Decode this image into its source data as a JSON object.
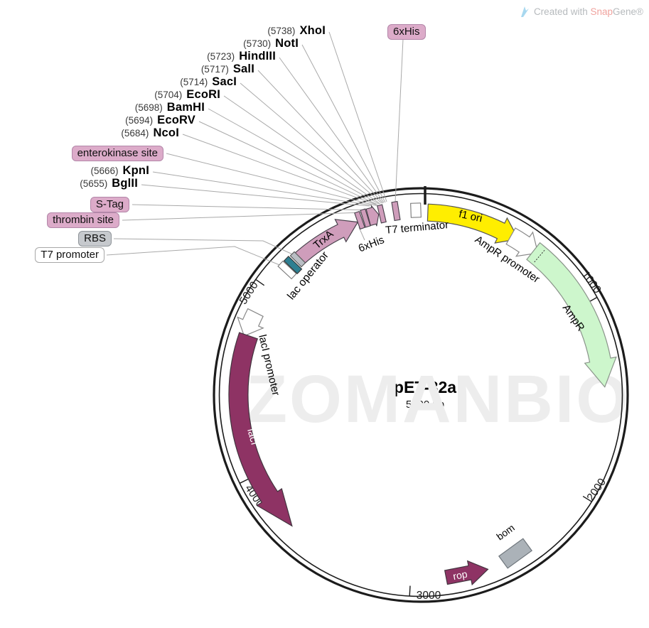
{
  "credit": {
    "prefix": "Created with ",
    "brand_a": "Snap",
    "brand_b": "Gene",
    "registered": "®",
    "logo": "snapgene-logo"
  },
  "watermark": "ZOMANBIO",
  "plasmid": {
    "name": "pET-32a",
    "size": "5900 bp"
  },
  "position_ticks": [
    "1000",
    "2000",
    "3000",
    "4000",
    "5000"
  ],
  "restriction_sites": [
    {
      "position": "(5738)",
      "enzyme": "XhoI"
    },
    {
      "position": "(5730)",
      "enzyme": "NotI"
    },
    {
      "position": "(5723)",
      "enzyme": "HindIII"
    },
    {
      "position": "(5717)",
      "enzyme": "SalI"
    },
    {
      "position": "(5714)",
      "enzyme": "SacI"
    },
    {
      "position": "(5704)",
      "enzyme": "EcoRI"
    },
    {
      "position": "(5698)",
      "enzyme": "BamHI"
    },
    {
      "position": "(5694)",
      "enzyme": "EcoRV"
    },
    {
      "position": "(5684)",
      "enzyme": "NcoI"
    },
    {
      "position": "(5666)",
      "enzyme": "KpnI"
    },
    {
      "position": "(5655)",
      "enzyme": "BglII"
    }
  ],
  "feature_labels": {
    "enterokinase_site": "enterokinase site",
    "s_tag": "S-Tag",
    "thrombin_site": "thrombin site",
    "rbs": "RBS",
    "t7_promoter": "T7 promoter",
    "his6_top": "6xHis",
    "his6_inner": "6xHis",
    "lac_operator": "lac operator",
    "trxa": "TrxA",
    "t7_terminator": "T7 terminator",
    "f1_ori": "f1 ori",
    "ampr_promoter": "AmpR promoter",
    "ampr": "AmpR",
    "laci_promoter": "lacI promoter",
    "laci": "lacI",
    "rop": "rop",
    "bom": "bom"
  },
  "colors": {
    "pink_feature": "#cf9dbb",
    "pink_label_bg": "#dcabc9",
    "pink_label_border": "#b387a9",
    "maroon": "#8e3364",
    "yellow": "#ffee00",
    "light_green": "#cdf6cc",
    "teal": "#2e7f91",
    "gray_marker": "#b9bec4",
    "bom_gray": "#abb2b8",
    "ring": "#1c1c1c",
    "leader_line": "#a9a9a9",
    "watermark_gray": "#ededed",
    "snapgene_red": "#f0a39e",
    "credit_gray": "#b6babd",
    "logo_blue": "#a8d8ef"
  }
}
